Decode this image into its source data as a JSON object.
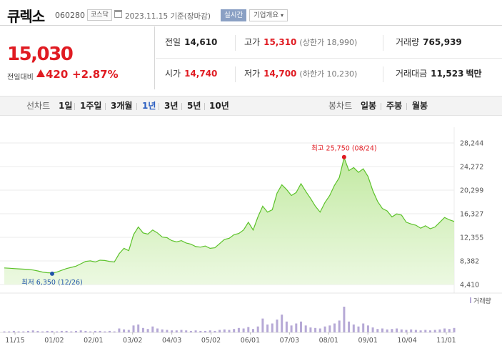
{
  "header": {
    "name": "큐렉소",
    "code": "060280",
    "market": "코스닥",
    "date": "2023.11.15  기준(장마감)",
    "live_label": "실시간",
    "overview_label": "기업개요"
  },
  "price": {
    "current": "15,030",
    "change_label": "전일대비",
    "change": "420",
    "change_pct": "+2.87%"
  },
  "summary": {
    "prev_label": "전일",
    "prev": "14,610",
    "high_label": "고가",
    "high": "15,310",
    "upper_limit": "(상한가 18,990)",
    "volume_label": "거래량",
    "volume": "765,939",
    "open_label": "시가",
    "open": "14,740",
    "low_label": "저가",
    "low": "14,700",
    "lower_limit": "(하한가 10,230)",
    "amount_label": "거래대금",
    "amount": "11,523",
    "amount_unit": "백만"
  },
  "periods": {
    "line_label": "선차트",
    "line": [
      "1일",
      "1주일",
      "3개월",
      "1년",
      "3년",
      "5년",
      "10년"
    ],
    "selected": "1년",
    "candle_label": "봉차트",
    "candle": [
      "일봉",
      "주봉",
      "월봉"
    ]
  },
  "colors": {
    "up": "#e01b22",
    "line": "#5cc22a",
    "fill_top": "#bfe89d",
    "volume": "#b6a9d6",
    "selected": "#2b5fc1",
    "low_marker": "#2255aa"
  },
  "chart_data": {
    "type": "area",
    "y_ticks": [
      "28,244",
      "24,272",
      "20,299",
      "16,327",
      "12,355",
      "8,382",
      "4,410"
    ],
    "ylim": [
      4410,
      28244
    ],
    "x_ticks": [
      "11/15",
      "01/02",
      "02/01",
      "03/02",
      "04/03",
      "05/02",
      "06/01",
      "07/03",
      "08/01",
      "09/01",
      "10/04",
      "11/01"
    ],
    "series": [
      {
        "values": [
          7200,
          7150,
          7100,
          7050,
          7000,
          6950,
          6850,
          6700,
          6500,
          6400,
          6350,
          6500,
          6800,
          7100,
          7300,
          7500,
          7900,
          8300,
          8400,
          8200,
          8500,
          8450,
          8300,
          8200,
          9600,
          10500,
          10100,
          12800,
          14100,
          13100,
          12900,
          13600,
          13100,
          12400,
          12300,
          11800,
          11600,
          11800,
          11400,
          11200,
          10800,
          10700,
          10900,
          10500,
          10600,
          11300,
          12000,
          12200,
          12800,
          13000,
          13600,
          14900,
          13600,
          15800,
          17600,
          16600,
          17000,
          19800,
          21200,
          20400,
          19400,
          19900,
          21400,
          20100,
          18900,
          17600,
          16600,
          18200,
          19400,
          21100,
          22400,
          25750,
          23600,
          24100,
          23300,
          23900,
          22600,
          20200,
          18400,
          17200,
          16800,
          15800,
          16300,
          16100,
          14900,
          14600,
          14400,
          13900,
          14300,
          13800,
          14100,
          14900,
          15700,
          15300,
          15030
        ]
      }
    ],
    "high_label": "최고 25,750 (08/24)",
    "low_label": "최저 6,350 (12/26)",
    "volume_label": "거래량",
    "volume": [
      2,
      2,
      3,
      2,
      2,
      3,
      4,
      3,
      2,
      3,
      3,
      2,
      3,
      3,
      2,
      3,
      4,
      3,
      2,
      3,
      3,
      2,
      3,
      2,
      8,
      6,
      5,
      14,
      16,
      9,
      7,
      12,
      8,
      6,
      5,
      4,
      4,
      5,
      4,
      3,
      4,
      3,
      3,
      4,
      3,
      5,
      6,
      5,
      7,
      9,
      8,
      11,
      7,
      12,
      28,
      16,
      18,
      26,
      36,
      22,
      14,
      18,
      22,
      14,
      10,
      9,
      8,
      12,
      14,
      18,
      24,
      52,
      22,
      16,
      12,
      18,
      14,
      10,
      7,
      8,
      6,
      7,
      8,
      6,
      5,
      6,
      5,
      4,
      5,
      4,
      5,
      6,
      8,
      7,
      9
    ]
  }
}
